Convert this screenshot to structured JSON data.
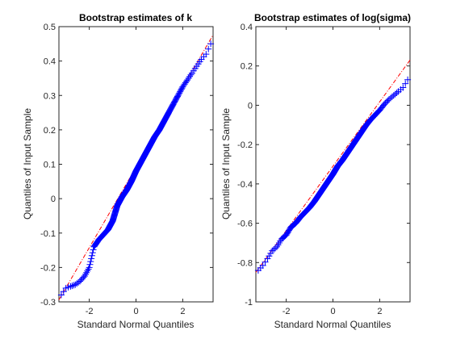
{
  "colors": {
    "points": "#0000ff",
    "reference": "#ff0000",
    "axes": "#262626"
  },
  "marker": "plus",
  "chart_data": [
    {
      "type": "scatter",
      "title": "Bootstrap estimates of k",
      "xlabel": "Standard Normal Quantiles",
      "ylabel": "Quantiles of Input Sample",
      "xlim": [
        -3.3,
        3.3
      ],
      "ylim": [
        -0.3,
        0.5
      ],
      "xticks": [
        -2,
        0,
        2
      ],
      "yticks": [
        -0.3,
        -0.2,
        -0.1,
        0,
        0.1,
        0.2,
        0.3,
        0.4,
        0.5
      ],
      "xtick_labels": [
        "-2",
        "0",
        "2"
      ],
      "ytick_labels": [
        "-0.3",
        "-0.2",
        "-0.1",
        "0",
        "0.1",
        "0.2",
        "0.3",
        "0.4",
        "0.5"
      ],
      "reference_line": {
        "x": [
          -3.3,
          3.3
        ],
        "y": [
          -0.294,
          0.476
        ]
      },
      "series": [
        {
          "x": [
            -3.2,
            -3.0,
            -2.8,
            -2.6,
            -2.4,
            -2.2,
            -2.0,
            -1.8,
            -1.6,
            -1.4,
            -1.2,
            -1.0,
            -0.8,
            -0.6,
            -0.4,
            -0.2,
            0.0,
            0.2,
            0.4,
            0.6,
            0.8,
            1.0,
            1.2,
            1.4,
            1.6,
            1.8,
            2.0,
            2.2,
            2.4,
            2.6,
            2.8,
            3.0,
            3.2
          ],
          "y": [
            -0.28,
            -0.26,
            -0.255,
            -0.25,
            -0.24,
            -0.225,
            -0.2,
            -0.14,
            -0.12,
            -0.105,
            -0.09,
            -0.065,
            -0.02,
            0.005,
            0.025,
            0.05,
            0.08,
            0.105,
            0.13,
            0.155,
            0.18,
            0.2,
            0.225,
            0.25,
            0.275,
            0.3,
            0.325,
            0.345,
            0.365,
            0.385,
            0.405,
            0.42,
            0.45
          ]
        }
      ]
    },
    {
      "type": "scatter",
      "title": "Bootstrap estimates of log(sigma)",
      "xlabel": "Standard Normal Quantiles",
      "ylabel": "Quantiles of Input Sample",
      "xlim": [
        -3.3,
        3.3
      ],
      "ylim": [
        -1,
        0.4
      ],
      "xticks": [
        -2,
        0,
        2
      ],
      "yticks": [
        -1,
        -0.8,
        -0.6,
        -0.4,
        -0.2,
        0,
        0.2,
        0.4
      ],
      "xtick_labels": [
        "-2",
        "0",
        "2"
      ],
      "ytick_labels": [
        "-1",
        "-0.8",
        "-0.6",
        "-0.4",
        "-0.2",
        "0",
        "0.2",
        "0.4"
      ],
      "reference_line": {
        "x": [
          -3.3,
          3.3
        ],
        "y": [
          -0.85,
          0.23
        ]
      },
      "series": [
        {
          "x": [
            -3.2,
            -3.0,
            -2.8,
            -2.6,
            -2.4,
            -2.2,
            -2.0,
            -1.8,
            -1.6,
            -1.4,
            -1.2,
            -1.0,
            -0.8,
            -0.6,
            -0.4,
            -0.2,
            0.0,
            0.2,
            0.4,
            0.6,
            0.8,
            1.0,
            1.2,
            1.4,
            1.6,
            1.8,
            2.0,
            2.2,
            2.4,
            2.6,
            2.8,
            3.0,
            3.2
          ],
          "y": [
            -0.84,
            -0.815,
            -0.78,
            -0.74,
            -0.72,
            -0.68,
            -0.66,
            -0.62,
            -0.6,
            -0.57,
            -0.545,
            -0.52,
            -0.49,
            -0.455,
            -0.42,
            -0.385,
            -0.35,
            -0.31,
            -0.28,
            -0.245,
            -0.21,
            -0.175,
            -0.14,
            -0.105,
            -0.075,
            -0.05,
            -0.025,
            0.005,
            0.03,
            0.05,
            0.07,
            0.09,
            0.13
          ]
        }
      ]
    }
  ]
}
